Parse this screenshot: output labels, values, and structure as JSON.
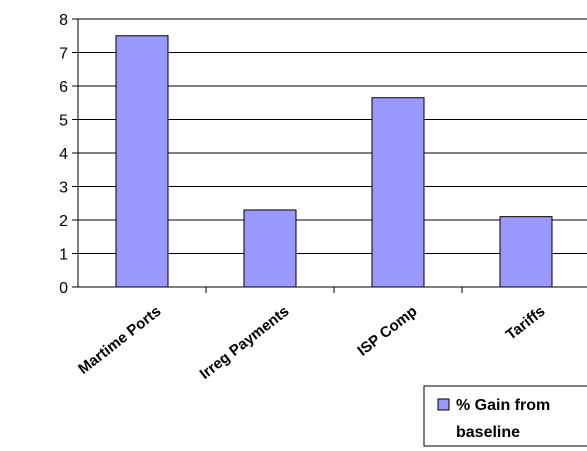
{
  "chart_data": {
    "type": "bar",
    "categories": [
      "Martime Ports",
      "Irreg Payments",
      "ISP Comp",
      "Tariffs"
    ],
    "series": [
      {
        "name": "% Gain from baseline",
        "values": [
          7.5,
          2.3,
          5.65,
          2.1
        ],
        "color": "#9999ff"
      }
    ],
    "title": "",
    "xlabel": "",
    "ylabel": "",
    "ylim": [
      0,
      8
    ],
    "yticks": [
      "0",
      "1",
      "2",
      "3",
      "4",
      "5",
      "6",
      "7",
      "8"
    ],
    "grid": true,
    "legend": {
      "position": "bottom-right",
      "lines": [
        "% Gain from",
        "baseline"
      ]
    }
  }
}
